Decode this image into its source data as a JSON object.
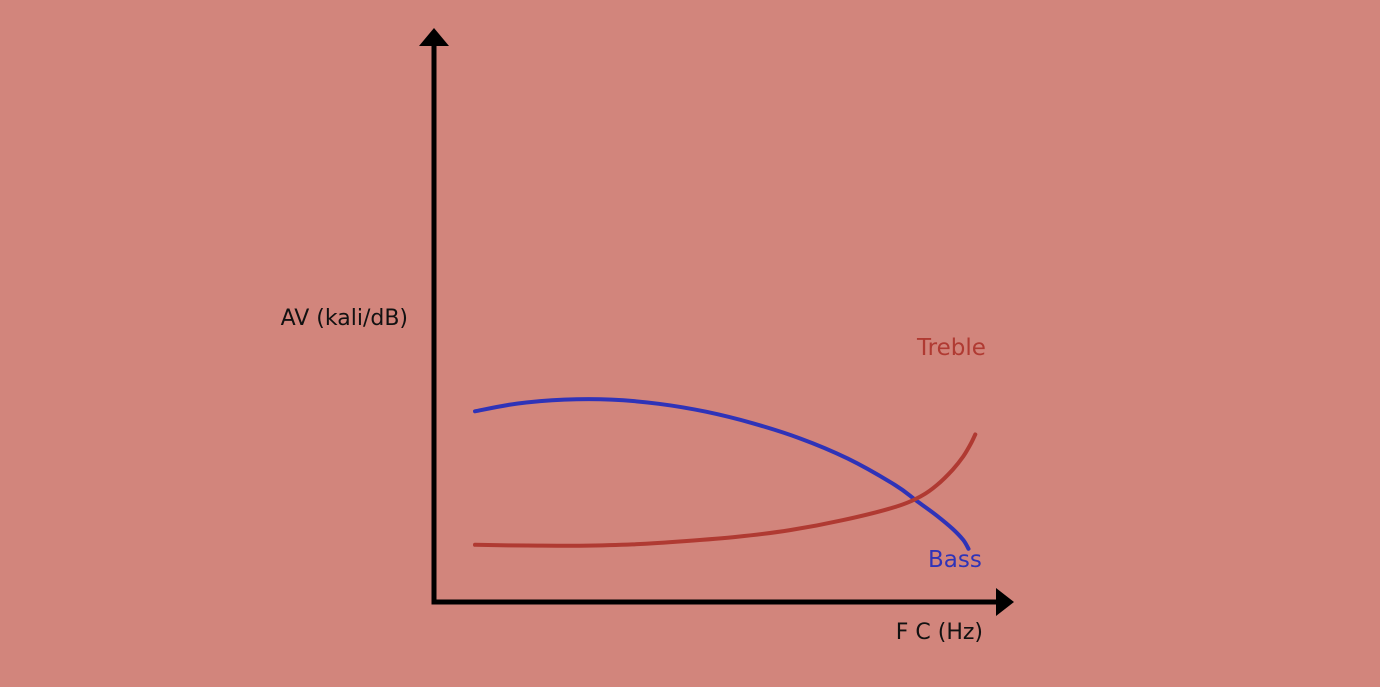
{
  "chart_data": {
    "type": "line",
    "title": "",
    "xlabel": "F C (Hz)",
    "ylabel": "AV (kali/dB)",
    "xlim": [
      0,
      100
    ],
    "ylim": [
      0,
      100
    ],
    "grid": false,
    "legend": "inline labels at curve ends",
    "series": [
      {
        "name": "Bass",
        "color": "#2f33b8",
        "x": [
          0,
          8,
          17,
          26,
          35,
          44,
          53,
          62,
          71,
          80,
          84,
          88,
          91,
          93,
          94
        ],
        "y": [
          58.5,
          62,
          63.8,
          63.8,
          61.9,
          58.3,
          53,
          46.1,
          37,
          25,
          18,
          11,
          5,
          0,
          -4
        ]
      },
      {
        "name": "Treble",
        "color": "#b03a32",
        "x": [
          0,
          10,
          20,
          30,
          40,
          50,
          60,
          70,
          80,
          85,
          88,
          91,
          93,
          94.5,
          95.3
        ],
        "y": [
          -2.2,
          -2.5,
          -2.6,
          -2,
          -0.5,
          1.5,
          4.5,
          9,
          15,
          20,
          25,
          32,
          38,
          44,
          48
        ]
      }
    ]
  }
}
